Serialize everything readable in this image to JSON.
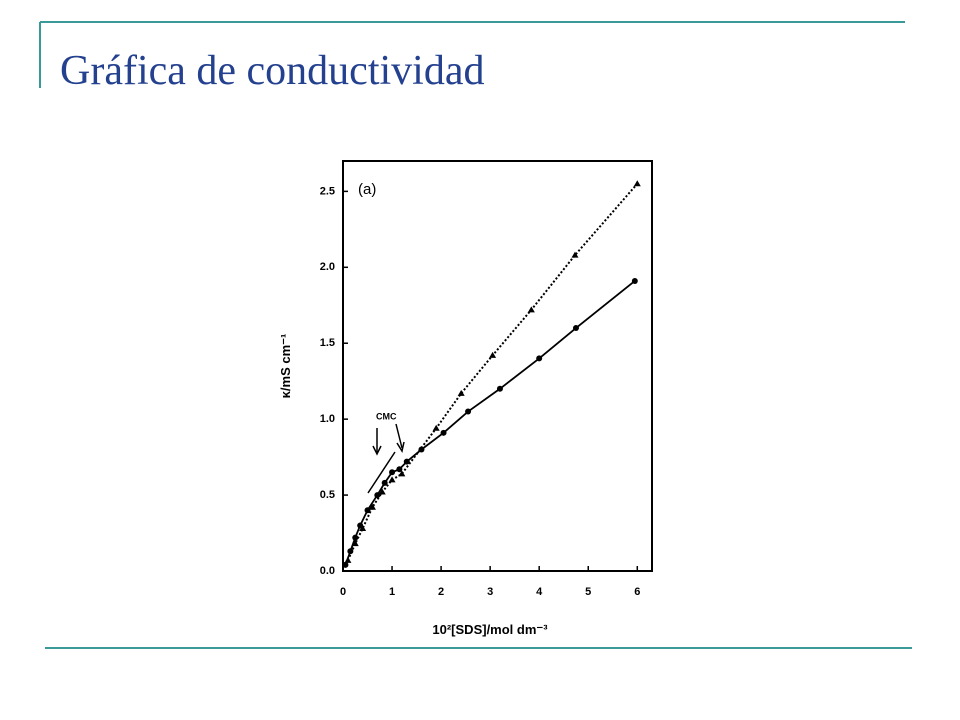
{
  "slide_title": "Gráfica de conductividad",
  "chart_data": {
    "type": "line",
    "annotations": [
      "(a)",
      "CMC"
    ],
    "x_label": "10²[SDS]/mol dm⁻³",
    "y_label": "κ/mS cm⁻¹",
    "xlim": [
      0,
      6.3
    ],
    "xticks": [
      0,
      1,
      2,
      3,
      4,
      5,
      6
    ],
    "ylim": [
      0,
      2.7
    ],
    "yticks": [
      {
        "value": 0,
        "label": "0.0"
      },
      0.5,
      {
        "value": 1,
        "label": "1.0"
      },
      1.5,
      {
        "value": 2,
        "label": "2.0"
      },
      2.5
    ],
    "series": [
      {
        "color": "#000000",
        "marker": "circle",
        "dash": "solid",
        "x": [
          0.05,
          0.15,
          0.25,
          0.35,
          0.5,
          0.7,
          0.85,
          1.0,
          1.15,
          1.3,
          1.6,
          2.05,
          2.55,
          3.2,
          4.0,
          4.75,
          5.95
        ],
        "values": [
          0.04,
          0.13,
          0.22,
          0.3,
          0.4,
          0.5,
          0.58,
          0.65,
          0.67,
          0.72,
          0.8,
          0.91,
          1.05,
          1.2,
          1.4,
          1.6,
          1.91
        ]
      },
      {
        "color": "#000000",
        "marker": "triangle",
        "dash": "dotted",
        "x": [
          0.1,
          0.25,
          0.4,
          0.6,
          0.8,
          1.0,
          1.2,
          1.9,
          2.41,
          3.05,
          3.84,
          4.73,
          6.0
        ],
        "values": [
          0.07,
          0.18,
          0.28,
          0.42,
          0.52,
          0.6,
          0.64,
          0.94,
          1.17,
          1.42,
          1.72,
          2.08,
          2.55
        ]
      }
    ]
  }
}
